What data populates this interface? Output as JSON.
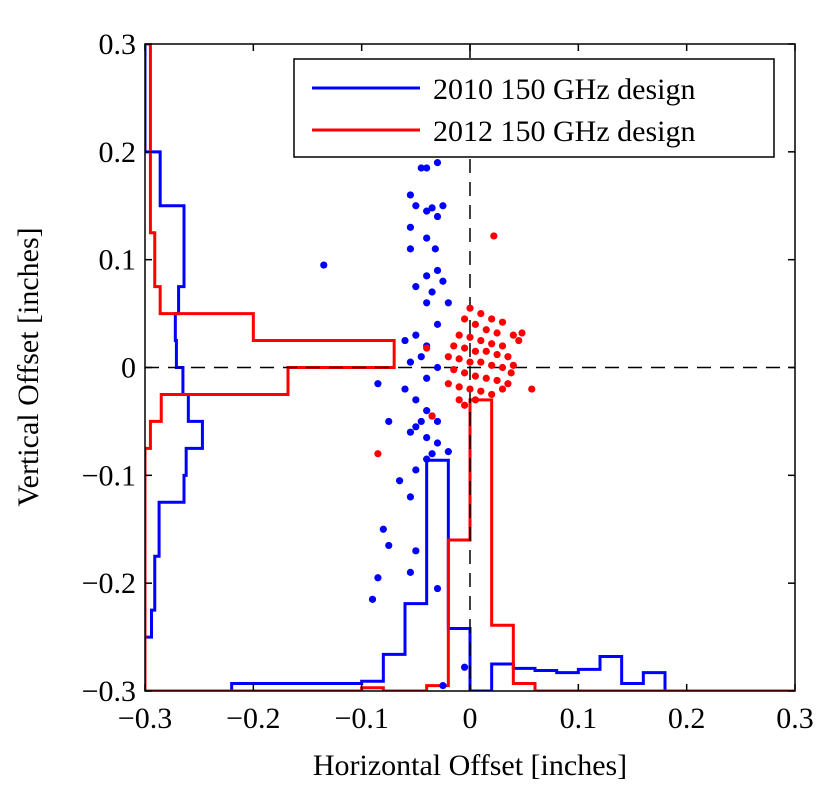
{
  "chart_data": {
    "type": "scatter",
    "title": "",
    "xlabel": "Horizontal Offset [inches]",
    "ylabel": "Vertical Offset [inches]",
    "xlim": [
      -0.3,
      0.3
    ],
    "ylim": [
      -0.3,
      0.3
    ],
    "xticks": [
      -0.3,
      -0.2,
      -0.1,
      0,
      0.1,
      0.2,
      0.3
    ],
    "xtick_labels": [
      "−0.3",
      "−0.2",
      "−0.1",
      "0",
      "0.1",
      "0.2",
      "0.3"
    ],
    "yticks": [
      -0.3,
      -0.2,
      -0.1,
      0,
      0.1,
      0.2,
      0.3
    ],
    "ytick_labels": [
      "−0.3",
      "−0.2",
      "−0.1",
      "0",
      "0.1",
      "0.2",
      "0.3"
    ],
    "grid": false,
    "reference_lines": {
      "x": 0,
      "y": 0,
      "style": "dashed"
    },
    "legend_position": "top-right",
    "series": [
      {
        "name": "2010 150 GHz design",
        "color": "#0000ff",
        "points": [
          [
            -0.135,
            0.095
          ],
          [
            -0.055,
            0.16
          ],
          [
            -0.05,
            0.15
          ],
          [
            -0.045,
            0.185
          ],
          [
            -0.04,
            0.185
          ],
          [
            -0.03,
            0.19
          ],
          [
            -0.04,
            0.145
          ],
          [
            -0.035,
            0.148
          ],
          [
            -0.03,
            0.14
          ],
          [
            -0.055,
            0.13
          ],
          [
            -0.04,
            0.12
          ],
          [
            -0.032,
            0.11
          ],
          [
            -0.025,
            0.15
          ],
          [
            -0.055,
            0.11
          ],
          [
            -0.03,
            0.09
          ],
          [
            -0.04,
            0.085
          ],
          [
            -0.025,
            0.08
          ],
          [
            -0.05,
            0.075
          ],
          [
            -0.035,
            0.07
          ],
          [
            -0.02,
            0.06
          ],
          [
            -0.04,
            0.06
          ],
          [
            -0.03,
            0.04
          ],
          [
            -0.05,
            0.03
          ],
          [
            -0.04,
            0.02
          ],
          [
            -0.06,
            0.025
          ],
          [
            -0.045,
            0.01
          ],
          [
            -0.03,
            0.0
          ],
          [
            -0.055,
            0.005
          ],
          [
            -0.04,
            -0.01
          ],
          [
            -0.085,
            -0.015
          ],
          [
            -0.06,
            -0.02
          ],
          [
            -0.05,
            -0.03
          ],
          [
            -0.04,
            -0.04
          ],
          [
            -0.035,
            -0.045
          ],
          [
            -0.03,
            -0.05
          ],
          [
            -0.045,
            -0.05
          ],
          [
            -0.075,
            -0.05
          ],
          [
            -0.05,
            -0.055
          ],
          [
            -0.04,
            -0.065
          ],
          [
            -0.03,
            -0.07
          ],
          [
            -0.055,
            -0.06
          ],
          [
            -0.02,
            -0.078
          ],
          [
            -0.035,
            -0.08
          ],
          [
            -0.04,
            -0.085
          ],
          [
            -0.05,
            -0.095
          ],
          [
            -0.065,
            -0.105
          ],
          [
            -0.055,
            -0.12
          ],
          [
            -0.08,
            -0.15
          ],
          [
            -0.075,
            -0.165
          ],
          [
            -0.05,
            -0.17
          ],
          [
            -0.085,
            -0.195
          ],
          [
            -0.055,
            -0.19
          ],
          [
            -0.09,
            -0.215
          ],
          [
            -0.03,
            -0.205
          ],
          [
            -0.025,
            -0.295
          ],
          [
            -0.005,
            -0.278
          ]
        ],
        "histogram_x": {
          "edges": [
            -0.3,
            -0.28,
            -0.26,
            -0.24,
            -0.22,
            -0.2,
            -0.18,
            -0.16,
            -0.14,
            -0.12,
            -0.1,
            -0.08,
            -0.06,
            -0.04,
            -0.02,
            0,
            0.02,
            0.04,
            0.06,
            0.08,
            0.1,
            0.12,
            0.14,
            0.16,
            0.18,
            0.2,
            0.22,
            0.24,
            0.26,
            0.28,
            0.3
          ],
          "levels": [
            -0.3,
            -0.3,
            -0.3,
            -0.3,
            -0.293,
            -0.293,
            -0.293,
            -0.293,
            -0.293,
            -0.293,
            -0.291,
            -0.266,
            -0.219,
            -0.086,
            -0.242,
            -0.3,
            -0.275,
            -0.279,
            -0.281,
            -0.283,
            -0.28,
            -0.268,
            -0.293,
            -0.283,
            -0.3,
            -0.3,
            -0.3,
            -0.3,
            -0.3,
            -0.3
          ]
        },
        "histogram_y": {
          "edges": [
            0.3,
            0.2,
            0.15,
            0.075,
            0.05,
            0.025,
            0,
            -0.025,
            -0.05,
            -0.075,
            -0.1,
            -0.125,
            -0.175,
            -0.225,
            -0.25,
            -0.3
          ],
          "levels": [
            -0.3,
            -0.286,
            -0.264,
            -0.269,
            -0.272,
            -0.271,
            -0.265,
            -0.26,
            -0.247,
            -0.262,
            -0.264,
            -0.287,
            -0.291,
            -0.294,
            -0.3
          ]
        }
      },
      {
        "name": "2012 150 GHz design",
        "color": "#ff0000",
        "points": [
          [
            0.022,
            0.122
          ],
          [
            0.0,
            0.055
          ],
          [
            -0.005,
            0.045
          ],
          [
            0.01,
            0.05
          ],
          [
            0.02,
            0.045
          ],
          [
            0.03,
            0.042
          ],
          [
            0.005,
            0.04
          ],
          [
            0.015,
            0.035
          ],
          [
            0.025,
            0.032
          ],
          [
            -0.01,
            0.03
          ],
          [
            0.0,
            0.028
          ],
          [
            0.01,
            0.025
          ],
          [
            0.02,
            0.022
          ],
          [
            0.03,
            0.02
          ],
          [
            0.04,
            0.03
          ],
          [
            0.045,
            0.025
          ],
          [
            -0.015,
            0.02
          ],
          [
            -0.005,
            0.018
          ],
          [
            0.005,
            0.015
          ],
          [
            0.015,
            0.015
          ],
          [
            0.025,
            0.012
          ],
          [
            0.035,
            0.01
          ],
          [
            -0.02,
            0.01
          ],
          [
            -0.01,
            0.008
          ],
          [
            0.0,
            0.005
          ],
          [
            0.01,
            0.005
          ],
          [
            0.02,
            0.002
          ],
          [
            0.03,
            0.0
          ],
          [
            0.04,
            0.002
          ],
          [
            -0.015,
            -0.002
          ],
          [
            -0.005,
            -0.005
          ],
          [
            0.005,
            -0.008
          ],
          [
            0.015,
            -0.01
          ],
          [
            0.025,
            -0.012
          ],
          [
            0.035,
            -0.015
          ],
          [
            -0.02,
            -0.015
          ],
          [
            -0.01,
            -0.018
          ],
          [
            0.0,
            -0.02
          ],
          [
            0.01,
            -0.022
          ],
          [
            0.02,
            -0.025
          ],
          [
            0.03,
            -0.02
          ],
          [
            0.057,
            -0.02
          ],
          [
            -0.01,
            -0.03
          ],
          [
            0.005,
            -0.03
          ],
          [
            -0.005,
            -0.035
          ],
          [
            -0.035,
            -0.045
          ],
          [
            -0.04,
            0.018
          ],
          [
            -0.085,
            -0.08
          ],
          [
            0.048,
            0.032
          ],
          [
            0.038,
            -0.005
          ]
        ],
        "histogram_x": {
          "edges": [
            -0.3,
            -0.28,
            -0.26,
            -0.24,
            -0.22,
            -0.2,
            -0.18,
            -0.16,
            -0.14,
            -0.12,
            -0.1,
            -0.08,
            -0.06,
            -0.04,
            -0.02,
            0,
            0.02,
            0.04,
            0.06,
            0.08,
            0.1,
            0.12,
            0.14,
            0.16,
            0.18,
            0.2,
            0.22,
            0.24,
            0.26,
            0.28,
            0.3
          ],
          "levels": [
            -0.3,
            -0.3,
            -0.3,
            -0.3,
            -0.3,
            -0.3,
            -0.3,
            -0.3,
            -0.3,
            -0.3,
            -0.297,
            -0.3,
            -0.3,
            -0.295,
            -0.16,
            -0.03,
            -0.239,
            -0.293,
            -0.3,
            -0.3,
            -0.3,
            -0.3,
            -0.3,
            -0.3,
            -0.3,
            -0.3,
            -0.3,
            -0.3,
            -0.3,
            -0.3
          ]
        },
        "histogram_y": {
          "edges": [
            0.3,
            0.125,
            0.075,
            0.05,
            0.025,
            0,
            -0.025,
            -0.05,
            -0.075,
            -0.1,
            -0.3
          ],
          "levels": [
            -0.295,
            -0.291,
            -0.286,
            -0.2,
            -0.07,
            -0.168,
            -0.285,
            -0.295,
            -0.3,
            -0.3
          ]
        }
      }
    ]
  }
}
